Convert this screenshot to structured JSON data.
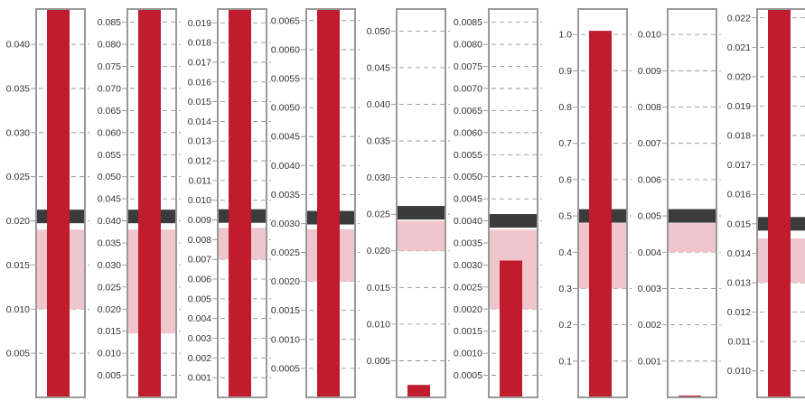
{
  "colors": {
    "bar": "#c11b2e",
    "band": "#efc6cb",
    "reference": "#3b3b3b",
    "frame": "#999999",
    "grid": "#888888",
    "text": "#333333"
  },
  "chart_data": [
    {
      "type": "bar",
      "ylim": [
        0,
        0.044
      ],
      "ticks": [
        0.005,
        0.01,
        0.015,
        0.02,
        0.025,
        0.03,
        0.035,
        0.04
      ],
      "tick_labels": [
        "0.005",
        "0.010",
        "0.015",
        "0.020",
        "0.025",
        "0.030",
        "0.035",
        "0.040"
      ],
      "value": 0.044,
      "band": [
        0.01,
        0.019
      ],
      "reference": 0.0205
    },
    {
      "type": "bar",
      "ylim": [
        0,
        0.088
      ],
      "ticks": [
        0.005,
        0.01,
        0.015,
        0.02,
        0.025,
        0.03,
        0.035,
        0.04,
        0.045,
        0.05,
        0.055,
        0.06,
        0.065,
        0.07,
        0.075,
        0.08,
        0.085
      ],
      "tick_labels": [
        "0.005",
        "0.010",
        "0.015",
        "0.020",
        "0.025",
        "0.030",
        "0.035",
        "0.040",
        "0.045",
        "0.050",
        "0.055",
        "0.060",
        "0.065",
        "0.070",
        "0.075",
        "0.080",
        "0.085"
      ],
      "value": 0.088,
      "band": [
        0.0145,
        0.038
      ],
      "reference": 0.041
    },
    {
      "type": "bar",
      "ylim": [
        0,
        0.0197
      ],
      "ticks": [
        0.001,
        0.002,
        0.003,
        0.004,
        0.005,
        0.006,
        0.007,
        0.008,
        0.009,
        0.01,
        0.011,
        0.012,
        0.013,
        0.014,
        0.015,
        0.016,
        0.017,
        0.018,
        0.019
      ],
      "tick_labels": [
        "0.001",
        "0.002",
        "0.003",
        "0.004",
        "0.005",
        "0.006",
        "0.007",
        "0.008",
        "0.009",
        "0.010",
        "0.011",
        "0.012",
        "0.013",
        "0.014",
        "0.015",
        "0.016",
        "0.017",
        "0.018",
        "0.019"
      ],
      "value": 0.0197,
      "band": [
        0.007,
        0.0086
      ],
      "reference": 0.0092
    },
    {
      "type": "bar",
      "ylim": [
        0,
        0.0067
      ],
      "ticks": [
        0.0005,
        0.001,
        0.0015,
        0.002,
        0.0025,
        0.003,
        0.0035,
        0.004,
        0.0045,
        0.005,
        0.0055,
        0.006,
        0.0065
      ],
      "tick_labels": [
        "0.0005",
        "0.0010",
        "0.0015",
        "0.0020",
        "0.0025",
        "0.0030",
        "0.0035",
        "0.0040",
        "0.0045",
        "0.0050",
        "0.0055",
        "0.0060",
        "0.0065"
      ],
      "value": 0.0067,
      "band": [
        0.002,
        0.0029
      ],
      "reference": 0.0031
    },
    {
      "type": "bar",
      "ylim": [
        0,
        0.053
      ],
      "ticks": [
        0.005,
        0.01,
        0.015,
        0.02,
        0.025,
        0.03,
        0.035,
        0.04,
        0.045,
        0.05
      ],
      "tick_labels": [
        "0.005",
        "0.010",
        "0.015",
        "0.020",
        "0.025",
        "0.030",
        "0.035",
        "0.040",
        "0.045",
        "0.050"
      ],
      "value": 0.0017,
      "band": [
        0.02,
        0.0241
      ],
      "reference": 0.0252
    },
    {
      "type": "bar",
      "ylim": [
        0,
        0.0088
      ],
      "ticks": [
        0.0005,
        0.001,
        0.0015,
        0.002,
        0.0025,
        0.003,
        0.0035,
        0.004,
        0.0045,
        0.005,
        0.0055,
        0.006,
        0.0065,
        0.007,
        0.0075,
        0.008,
        0.0085
      ],
      "tick_labels": [
        "0.0005",
        "0.0010",
        "0.0015",
        "0.0020",
        "0.0025",
        "0.0030",
        "0.0035",
        "0.0040",
        "0.0045",
        "0.0050",
        "0.0055",
        "0.0060",
        "0.0065",
        "0.0070",
        "0.0075",
        "0.0080",
        "0.0085"
      ],
      "value": 0.0031,
      "band": [
        0.002,
        0.0038
      ],
      "reference": 0.004
    },
    {
      "type": "bar",
      "ylim": [
        0,
        1.07
      ],
      "ticks": [
        0.1,
        0.2,
        0.3,
        0.4,
        0.5,
        0.6,
        0.7,
        0.8,
        0.9,
        1.0
      ],
      "tick_labels": [
        "0.1",
        "0.2",
        "0.3",
        "0.4",
        "0.5",
        "0.6",
        "0.7",
        "0.8",
        "0.9",
        "1.0"
      ],
      "value": 1.01,
      "band": [
        0.3,
        0.48
      ],
      "reference": 0.5
    },
    {
      "type": "bar",
      "ylim": [
        0,
        0.0107
      ],
      "ticks": [
        0.001,
        0.002,
        0.003,
        0.004,
        0.005,
        0.006,
        0.007,
        0.008,
        0.009,
        0.01
      ],
      "tick_labels": [
        "0.001",
        "0.002",
        "0.003",
        "0.004",
        "0.005",
        "0.006",
        "0.007",
        "0.008",
        "0.009",
        "0.010"
      ],
      "value": 5e-05,
      "band": [
        0.004,
        0.0048
      ],
      "reference": 0.005
    },
    {
      "type": "bar",
      "ylim": [
        0.0091,
        0.0223
      ],
      "ticks": [
        0.01,
        0.011,
        0.012,
        0.013,
        0.014,
        0.015,
        0.016,
        0.017,
        0.018,
        0.019,
        0.02,
        0.021,
        0.022
      ],
      "tick_labels": [
        "0.010",
        "0.011",
        "0.012",
        "0.013",
        "0.014",
        "0.015",
        "0.016",
        "0.017",
        "0.018",
        "0.019",
        "0.020",
        "0.021",
        "0.022"
      ],
      "value": 0.0223,
      "band": [
        0.013,
        0.0145
      ],
      "reference": 0.015
    }
  ]
}
